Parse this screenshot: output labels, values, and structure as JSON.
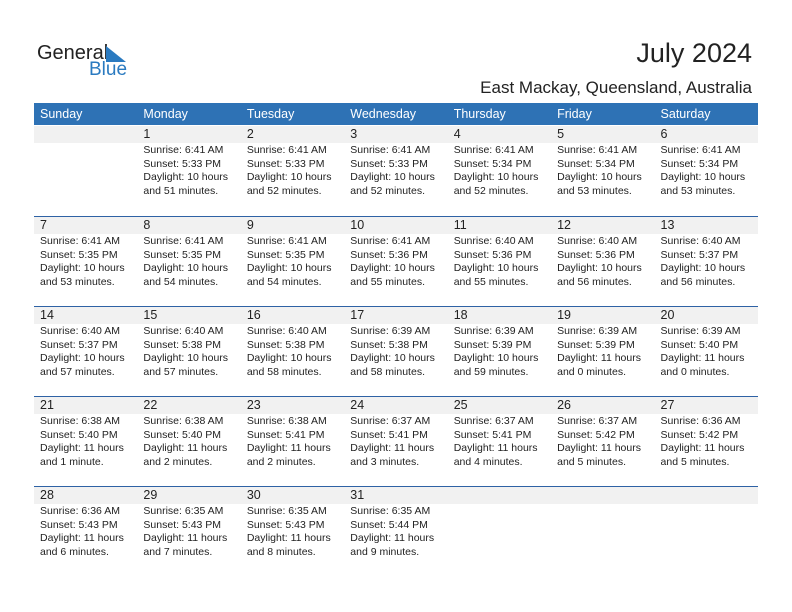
{
  "logo": {
    "general": "General",
    "blue": "Blue"
  },
  "title": "July 2024",
  "location": "East Mackay, Queensland, Australia",
  "weekdays": [
    "Sunday",
    "Monday",
    "Tuesday",
    "Wednesday",
    "Thursday",
    "Friday",
    "Saturday"
  ],
  "colors": {
    "header": "#2e72b5",
    "strip": "#f1f1f1",
    "brand_blue": "#2a7ac0"
  },
  "weeks": [
    [
      null,
      {
        "day": "1",
        "sunrise": "Sunrise: 6:41 AM",
        "sunset": "Sunset: 5:33 PM",
        "daylight": "Daylight: 10 hours",
        "minutes": "and 51 minutes."
      },
      {
        "day": "2",
        "sunrise": "Sunrise: 6:41 AM",
        "sunset": "Sunset: 5:33 PM",
        "daylight": "Daylight: 10 hours",
        "minutes": "and 52 minutes."
      },
      {
        "day": "3",
        "sunrise": "Sunrise: 6:41 AM",
        "sunset": "Sunset: 5:33 PM",
        "daylight": "Daylight: 10 hours",
        "minutes": "and 52 minutes."
      },
      {
        "day": "4",
        "sunrise": "Sunrise: 6:41 AM",
        "sunset": "Sunset: 5:34 PM",
        "daylight": "Daylight: 10 hours",
        "minutes": "and 52 minutes."
      },
      {
        "day": "5",
        "sunrise": "Sunrise: 6:41 AM",
        "sunset": "Sunset: 5:34 PM",
        "daylight": "Daylight: 10 hours",
        "minutes": "and 53 minutes."
      },
      {
        "day": "6",
        "sunrise": "Sunrise: 6:41 AM",
        "sunset": "Sunset: 5:34 PM",
        "daylight": "Daylight: 10 hours",
        "minutes": "and 53 minutes."
      }
    ],
    [
      {
        "day": "7",
        "sunrise": "Sunrise: 6:41 AM",
        "sunset": "Sunset: 5:35 PM",
        "daylight": "Daylight: 10 hours",
        "minutes": "and 53 minutes."
      },
      {
        "day": "8",
        "sunrise": "Sunrise: 6:41 AM",
        "sunset": "Sunset: 5:35 PM",
        "daylight": "Daylight: 10 hours",
        "minutes": "and 54 minutes."
      },
      {
        "day": "9",
        "sunrise": "Sunrise: 6:41 AM",
        "sunset": "Sunset: 5:35 PM",
        "daylight": "Daylight: 10 hours",
        "minutes": "and 54 minutes."
      },
      {
        "day": "10",
        "sunrise": "Sunrise: 6:41 AM",
        "sunset": "Sunset: 5:36 PM",
        "daylight": "Daylight: 10 hours",
        "minutes": "and 55 minutes."
      },
      {
        "day": "11",
        "sunrise": "Sunrise: 6:40 AM",
        "sunset": "Sunset: 5:36 PM",
        "daylight": "Daylight: 10 hours",
        "minutes": "and 55 minutes."
      },
      {
        "day": "12",
        "sunrise": "Sunrise: 6:40 AM",
        "sunset": "Sunset: 5:36 PM",
        "daylight": "Daylight: 10 hours",
        "minutes": "and 56 minutes."
      },
      {
        "day": "13",
        "sunrise": "Sunrise: 6:40 AM",
        "sunset": "Sunset: 5:37 PM",
        "daylight": "Daylight: 10 hours",
        "minutes": "and 56 minutes."
      }
    ],
    [
      {
        "day": "14",
        "sunrise": "Sunrise: 6:40 AM",
        "sunset": "Sunset: 5:37 PM",
        "daylight": "Daylight: 10 hours",
        "minutes": "and 57 minutes."
      },
      {
        "day": "15",
        "sunrise": "Sunrise: 6:40 AM",
        "sunset": "Sunset: 5:38 PM",
        "daylight": "Daylight: 10 hours",
        "minutes": "and 57 minutes."
      },
      {
        "day": "16",
        "sunrise": "Sunrise: 6:40 AM",
        "sunset": "Sunset: 5:38 PM",
        "daylight": "Daylight: 10 hours",
        "minutes": "and 58 minutes."
      },
      {
        "day": "17",
        "sunrise": "Sunrise: 6:39 AM",
        "sunset": "Sunset: 5:38 PM",
        "daylight": "Daylight: 10 hours",
        "minutes": "and 58 minutes."
      },
      {
        "day": "18",
        "sunrise": "Sunrise: 6:39 AM",
        "sunset": "Sunset: 5:39 PM",
        "daylight": "Daylight: 10 hours",
        "minutes": "and 59 minutes."
      },
      {
        "day": "19",
        "sunrise": "Sunrise: 6:39 AM",
        "sunset": "Sunset: 5:39 PM",
        "daylight": "Daylight: 11 hours",
        "minutes": "and 0 minutes."
      },
      {
        "day": "20",
        "sunrise": "Sunrise: 6:39 AM",
        "sunset": "Sunset: 5:40 PM",
        "daylight": "Daylight: 11 hours",
        "minutes": "and 0 minutes."
      }
    ],
    [
      {
        "day": "21",
        "sunrise": "Sunrise: 6:38 AM",
        "sunset": "Sunset: 5:40 PM",
        "daylight": "Daylight: 11 hours",
        "minutes": "and 1 minute."
      },
      {
        "day": "22",
        "sunrise": "Sunrise: 6:38 AM",
        "sunset": "Sunset: 5:40 PM",
        "daylight": "Daylight: 11 hours",
        "minutes": "and 2 minutes."
      },
      {
        "day": "23",
        "sunrise": "Sunrise: 6:38 AM",
        "sunset": "Sunset: 5:41 PM",
        "daylight": "Daylight: 11 hours",
        "minutes": "and 2 minutes."
      },
      {
        "day": "24",
        "sunrise": "Sunrise: 6:37 AM",
        "sunset": "Sunset: 5:41 PM",
        "daylight": "Daylight: 11 hours",
        "minutes": "and 3 minutes."
      },
      {
        "day": "25",
        "sunrise": "Sunrise: 6:37 AM",
        "sunset": "Sunset: 5:41 PM",
        "daylight": "Daylight: 11 hours",
        "minutes": "and 4 minutes."
      },
      {
        "day": "26",
        "sunrise": "Sunrise: 6:37 AM",
        "sunset": "Sunset: 5:42 PM",
        "daylight": "Daylight: 11 hours",
        "minutes": "and 5 minutes."
      },
      {
        "day": "27",
        "sunrise": "Sunrise: 6:36 AM",
        "sunset": "Sunset: 5:42 PM",
        "daylight": "Daylight: 11 hours",
        "minutes": "and 5 minutes."
      }
    ],
    [
      {
        "day": "28",
        "sunrise": "Sunrise: 6:36 AM",
        "sunset": "Sunset: 5:43 PM",
        "daylight": "Daylight: 11 hours",
        "minutes": "and 6 minutes."
      },
      {
        "day": "29",
        "sunrise": "Sunrise: 6:35 AM",
        "sunset": "Sunset: 5:43 PM",
        "daylight": "Daylight: 11 hours",
        "minutes": "and 7 minutes."
      },
      {
        "day": "30",
        "sunrise": "Sunrise: 6:35 AM",
        "sunset": "Sunset: 5:43 PM",
        "daylight": "Daylight: 11 hours",
        "minutes": "and 8 minutes."
      },
      {
        "day": "31",
        "sunrise": "Sunrise: 6:35 AM",
        "sunset": "Sunset: 5:44 PM",
        "daylight": "Daylight: 11 hours",
        "minutes": "and 9 minutes."
      },
      null,
      null,
      null
    ]
  ]
}
